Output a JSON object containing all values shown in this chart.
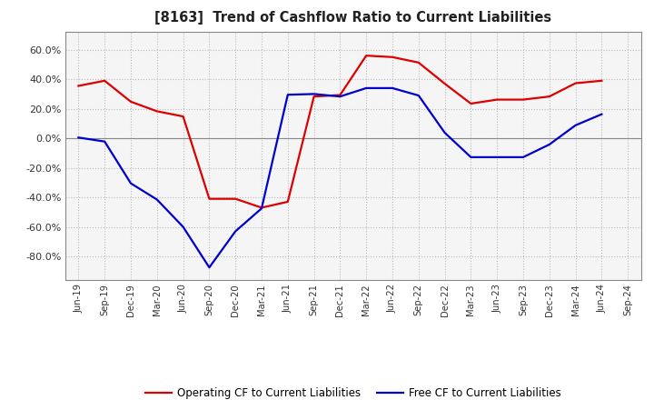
{
  "title": "[8163]  Trend of Cashflow Ratio to Current Liabilities",
  "x_labels": [
    "Jun-19",
    "Sep-19",
    "Dec-19",
    "Mar-20",
    "Jun-20",
    "Sep-20",
    "Dec-20",
    "Mar-21",
    "Jun-21",
    "Sep-21",
    "Dec-21",
    "Mar-22",
    "Jun-22",
    "Sep-22",
    "Dec-22",
    "Mar-23",
    "Jun-23",
    "Sep-23",
    "Dec-23",
    "Mar-24",
    "Jun-24",
    "Sep-24"
  ],
  "operating_cf": [
    0.355,
    0.39,
    0.248,
    0.183,
    0.148,
    -0.41,
    -0.41,
    -0.47,
    -0.43,
    0.283,
    0.293,
    0.56,
    0.55,
    0.513,
    0.37,
    0.235,
    0.262,
    0.262,
    0.283,
    0.373,
    0.39,
    null
  ],
  "free_cf": [
    0.005,
    -0.022,
    -0.305,
    -0.415,
    -0.6,
    -0.875,
    -0.63,
    -0.475,
    0.295,
    0.3,
    0.283,
    0.34,
    0.34,
    0.29,
    0.038,
    -0.128,
    -0.128,
    -0.128,
    -0.042,
    0.088,
    0.163,
    null
  ],
  "operating_cf_color": "#dd0000",
  "free_cf_color": "#0000cc",
  "ylim_min": -0.96,
  "ylim_max": 0.72,
  "yticks": [
    -0.8,
    -0.6,
    -0.4,
    -0.2,
    0.0,
    0.2,
    0.4,
    0.6
  ],
  "ytick_labels": [
    "-80.0%",
    "-60.0%",
    "-40.0%",
    "-20.0%",
    "0.0%",
    "20.0%",
    "40.0%",
    "60.0%"
  ],
  "background_color": "#ffffff",
  "plot_bg_color": "#f5f5f5",
  "grid_color": "#bbbbbb",
  "legend_op": "Operating CF to Current Liabilities",
  "legend_free": "Free CF to Current Liabilities",
  "linewidth": 1.6
}
